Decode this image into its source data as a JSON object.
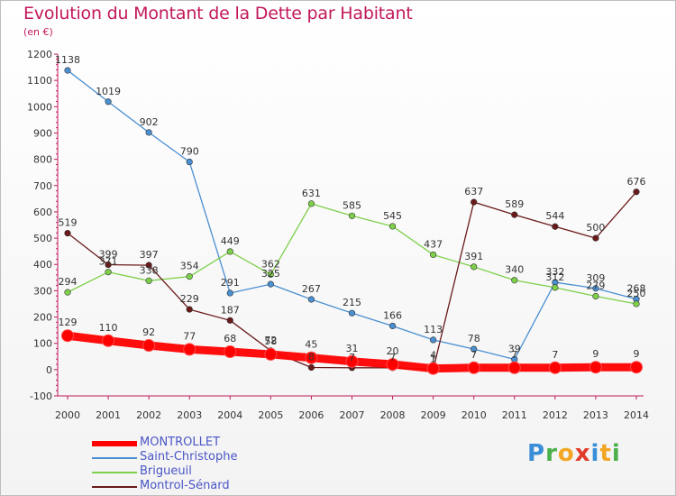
{
  "title": "Evolution du Montant de la Dette par Habitant",
  "subtitle": "(en €)",
  "logo": {
    "text": "Proxiti",
    "letter_colors": [
      "#3a8ed8",
      "#4ab04a",
      "#f2a623",
      "#e23a2a",
      "#3a8ed8",
      "#f2a623",
      "#4ab04a"
    ]
  },
  "chart_data": {
    "type": "line",
    "title": "Evolution du Montant de la Dette par Habitant",
    "ylabel": "(en €)",
    "xlabel": "",
    "x": [
      "2000",
      "2001",
      "2002",
      "2003",
      "2004",
      "2005",
      "2006",
      "2007",
      "2008",
      "2009",
      "2010",
      "2011",
      "2012",
      "2013",
      "2014"
    ],
    "ylim": [
      -100,
      1200
    ],
    "yticks": [
      "-100",
      "0",
      "100",
      "200",
      "300",
      "400",
      "500",
      "600",
      "700",
      "800",
      "900",
      "1000",
      "1100",
      "1200"
    ],
    "grid": false,
    "legend_position": "bottom-left",
    "series": [
      {
        "name": "MONTROLLET",
        "color": "#ff0000",
        "values": [
          129,
          110,
          92,
          77,
          68,
          58,
          45,
          31,
          20,
          4,
          7,
          7,
          7,
          9,
          9
        ]
      },
      {
        "name": "Saint-Christophe",
        "color": "#4a8fd1",
        "values": [
          1138,
          1019,
          902,
          790,
          291,
          325,
          267,
          215,
          166,
          113,
          78,
          39,
          332,
          309,
          268
        ]
      },
      {
        "name": "Brigueuil",
        "color": "#7ed04b",
        "values": [
          294,
          371,
          338,
          354,
          449,
          362,
          631,
          585,
          545,
          437,
          391,
          340,
          312,
          279,
          250
        ]
      },
      {
        "name": "Montrol-Sénard",
        "color": "#6b1a1a",
        "values": [
          519,
          399,
          397,
          229,
          187,
          72,
          8,
          7,
          7,
          1,
          637,
          589,
          544,
          500,
          676
        ]
      }
    ]
  }
}
